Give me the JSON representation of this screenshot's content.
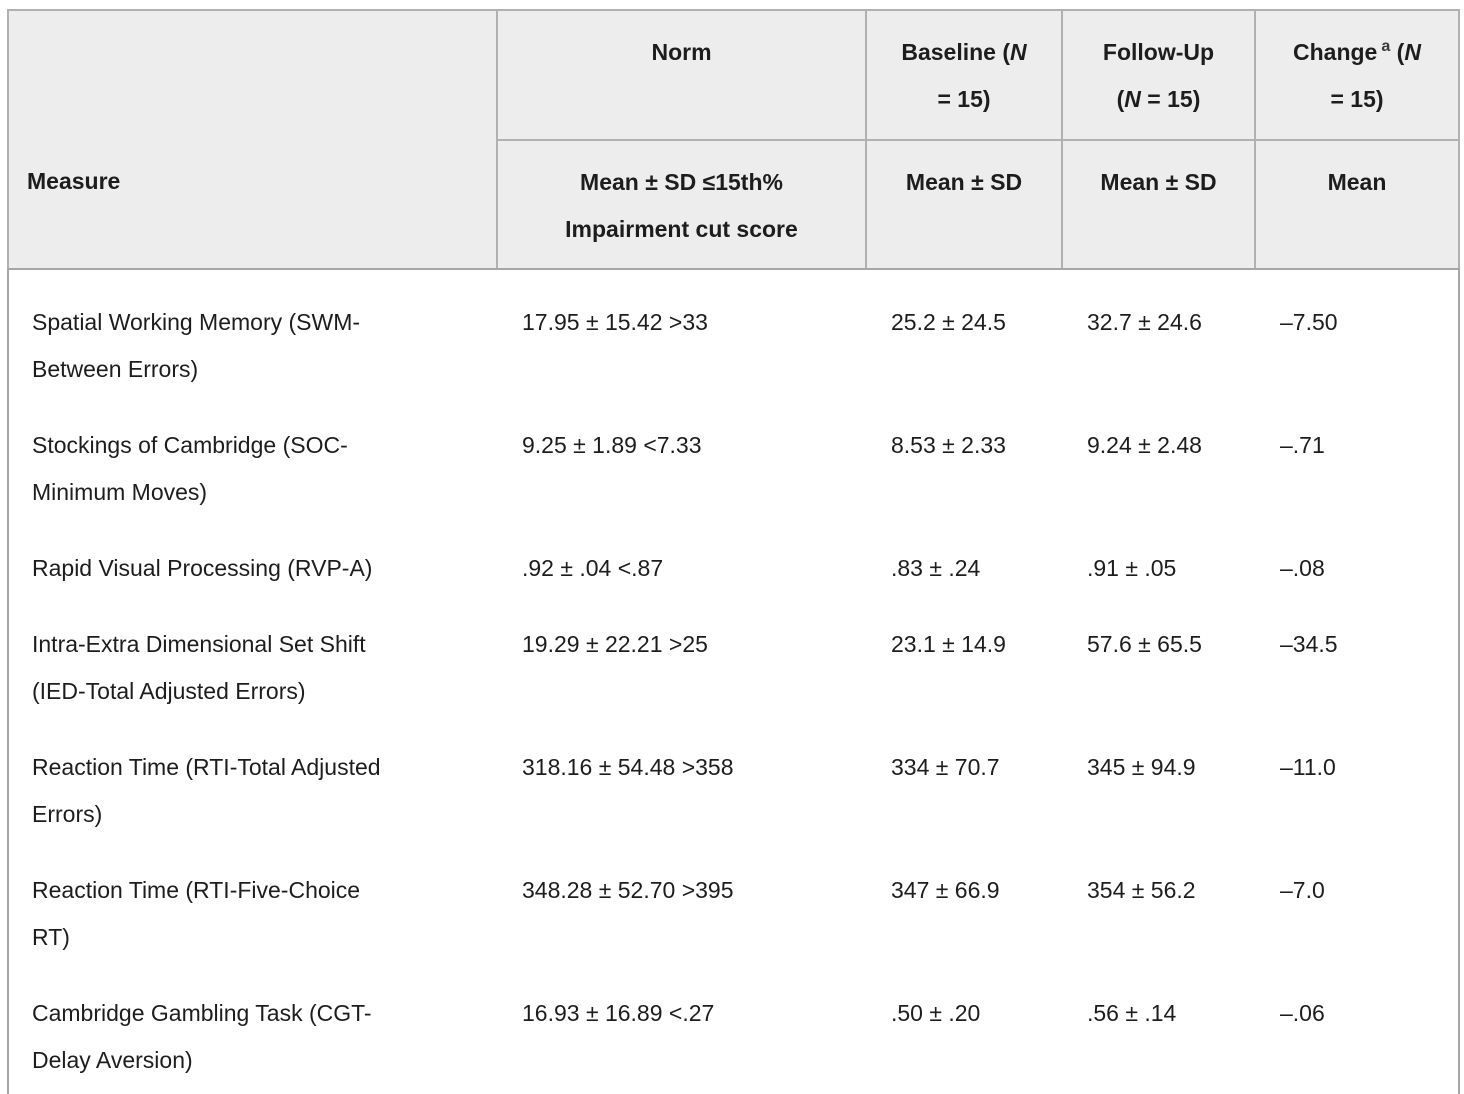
{
  "colors": {
    "header_bg": "#ededed",
    "border": "#a6a6a6",
    "text": "#1d1d1d"
  },
  "table": {
    "measure_header": "Measure",
    "columns": [
      {
        "id": "norm",
        "top": [
          [
            {
              "t": "Norm"
            }
          ]
        ],
        "bottom": [
          "Mean ± SD ≤15th%",
          "Impairment cut score"
        ]
      },
      {
        "id": "baseline",
        "top": [
          [
            {
              "t": "Baseline ("
            },
            {
              "t": "N",
              "i": true
            }
          ],
          [
            {
              "t": "= 15)"
            }
          ]
        ],
        "bottom": [
          "Mean ± SD"
        ]
      },
      {
        "id": "followup",
        "top": [
          [
            {
              "t": "Follow-Up"
            }
          ],
          [
            {
              "t": "("
            },
            {
              "t": "N",
              "i": true
            },
            {
              "t": " = 15)"
            }
          ]
        ],
        "bottom": [
          "Mean ± SD"
        ]
      },
      {
        "id": "change",
        "top": [
          [
            {
              "t": "Change"
            },
            {
              "t": "a",
              "sup": true
            },
            {
              "t": " ("
            },
            {
              "t": "N",
              "i": true
            }
          ],
          [
            {
              "t": "= 15)"
            }
          ]
        ],
        "bottom": [
          "Mean"
        ]
      }
    ],
    "rows": [
      {
        "measure": [
          "Spatial Working Memory (SWM-",
          "Between Errors)"
        ],
        "norm": "17.95 ± 15.42 >33",
        "baseline": "25.2 ± 24.5",
        "followup": "32.7 ± 24.6",
        "change": "–7.50"
      },
      {
        "measure": [
          "Stockings of Cambridge (SOC-",
          "Minimum Moves)"
        ],
        "norm": "9.25 ± 1.89 <7.33",
        "baseline": "8.53 ± 2.33",
        "followup": "9.24 ± 2.48",
        "change": "–.71"
      },
      {
        "measure": [
          "Rapid Visual Processing (RVP-A)"
        ],
        "norm": ".92 ± .04 <.87",
        "baseline": ".83 ± .24",
        "followup": ".91 ± .05",
        "change": "–.08"
      },
      {
        "measure": [
          "Intra-Extra Dimensional Set Shift",
          "(IED-Total Adjusted Errors)"
        ],
        "norm": "19.29 ± 22.21 >25",
        "baseline": "23.1 ± 14.9",
        "followup": "57.6 ± 65.5",
        "change": "–34.5"
      },
      {
        "measure": [
          "Reaction Time (RTI-Total Adjusted",
          "Errors)"
        ],
        "norm": "318.16 ± 54.48 >358",
        "baseline": "334 ± 70.7",
        "followup": "345 ± 94.9",
        "change": "–11.0"
      },
      {
        "measure": [
          "Reaction Time (RTI-Five-Choice",
          "RT)"
        ],
        "norm": "348.28 ± 52.70 >395",
        "baseline": "347 ± 66.9",
        "followup": "354 ± 56.2",
        "change": "–7.0"
      },
      {
        "measure": [
          "Cambridge Gambling Task (CGT-",
          "Delay Aversion)"
        ],
        "norm": "16.93 ± 16.89 <.27",
        "baseline": ".50 ± .20",
        "followup": ".56 ± .14",
        "change": "–.06"
      }
    ]
  }
}
